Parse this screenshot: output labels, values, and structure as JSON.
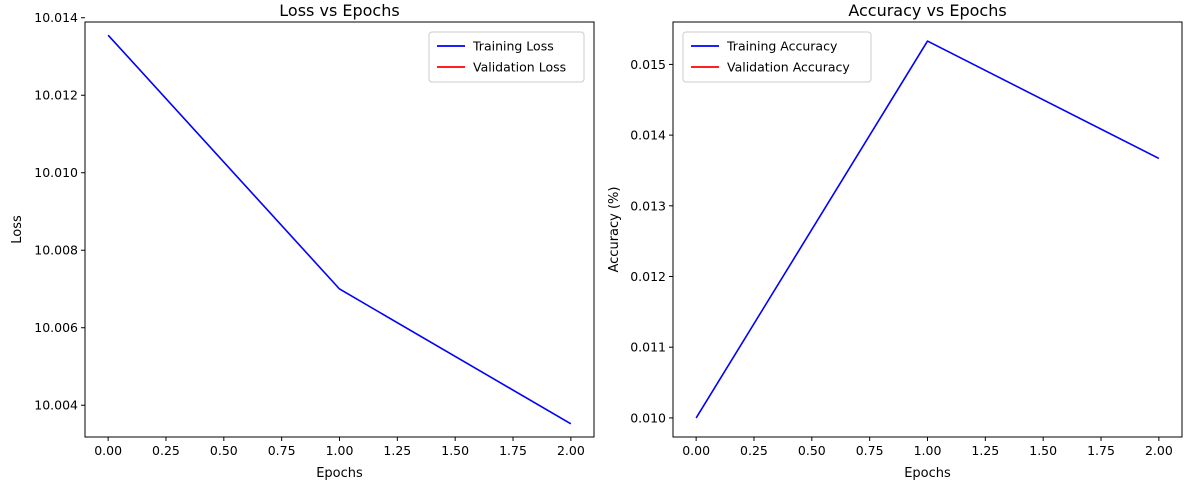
{
  "chart_data": [
    {
      "type": "line",
      "title": "Loss vs Epochs",
      "xlabel": "Epochs",
      "ylabel": "Loss",
      "xlim": [
        -0.1,
        2.1
      ],
      "ylim": [
        10.00318,
        10.01389
      ],
      "x_ticks": [
        0.0,
        0.25,
        0.5,
        0.75,
        1.0,
        1.25,
        1.5,
        1.75,
        2.0
      ],
      "x_tick_labels": [
        "0.00",
        "0.25",
        "0.50",
        "0.75",
        "1.00",
        "1.25",
        "1.50",
        "1.75",
        "2.00"
      ],
      "y_ticks": [
        10.004,
        10.006,
        10.008,
        10.01,
        10.012,
        10.014
      ],
      "y_tick_labels": [
        "10.004",
        "10.006",
        "10.008",
        "10.010",
        "10.012",
        "10.014"
      ],
      "grid": false,
      "legend": {
        "position": "top-right"
      },
      "series": [
        {
          "name": "Training Loss",
          "color": "#0000ff",
          "x": [
            0,
            1,
            2
          ],
          "y": [
            10.01355,
            10.007,
            10.00352
          ]
        },
        {
          "name": "Validation Loss",
          "color": "#ff0000",
          "x": [],
          "y": []
        }
      ]
    },
    {
      "type": "line",
      "title": "Accuracy vs Epochs",
      "xlabel": "Epochs",
      "ylabel": "Accuracy (%)",
      "xlim": [
        -0.1,
        2.1
      ],
      "ylim": [
        0.00973,
        0.0156
      ],
      "x_ticks": [
        0.0,
        0.25,
        0.5,
        0.75,
        1.0,
        1.25,
        1.5,
        1.75,
        2.0
      ],
      "x_tick_labels": [
        "0.00",
        "0.25",
        "0.50",
        "0.75",
        "1.00",
        "1.25",
        "1.50",
        "1.75",
        "2.00"
      ],
      "y_ticks": [
        0.01,
        0.011,
        0.012,
        0.013,
        0.014,
        0.015
      ],
      "y_tick_labels": [
        "0.010",
        "0.011",
        "0.012",
        "0.013",
        "0.014",
        "0.015"
      ],
      "grid": false,
      "legend": {
        "position": "top-left"
      },
      "series": [
        {
          "name": "Training Accuracy",
          "color": "#0000ff",
          "x": [
            0,
            1,
            2
          ],
          "y": [
            0.01,
            0.01533,
            0.01367
          ]
        },
        {
          "name": "Validation Accuracy",
          "color": "#ff0000",
          "x": [],
          "y": []
        }
      ]
    }
  ]
}
